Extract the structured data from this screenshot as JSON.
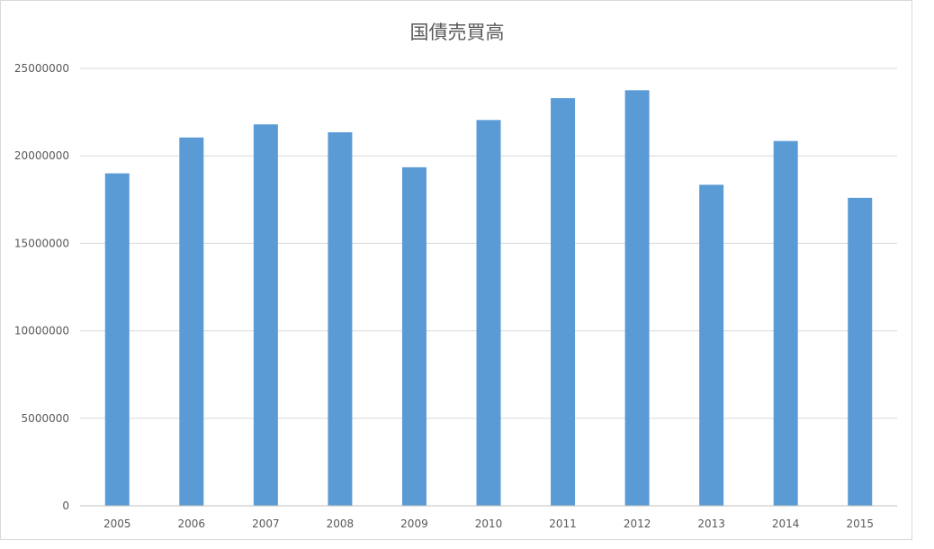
{
  "chart_data": {
    "type": "bar",
    "title": "国債売買高",
    "xlabel": "",
    "ylabel": "",
    "categories": [
      "2005",
      "2006",
      "2007",
      "2008",
      "2009",
      "2010",
      "2011",
      "2012",
      "2013",
      "2014",
      "2015"
    ],
    "values": [
      19000000,
      21050000,
      21800000,
      21350000,
      19350000,
      22050000,
      23300000,
      23750000,
      18350000,
      20850000,
      17600000
    ],
    "ylim": [
      0,
      25000000
    ],
    "yticks": [
      "0",
      "5000000",
      "10000000",
      "15000000",
      "20000000",
      "25000000"
    ],
    "ytick_values": [
      0,
      5000000,
      10000000,
      15000000,
      20000000,
      25000000
    ],
    "grid": true,
    "legend": "none",
    "bar_color": "#5b9bd5"
  }
}
